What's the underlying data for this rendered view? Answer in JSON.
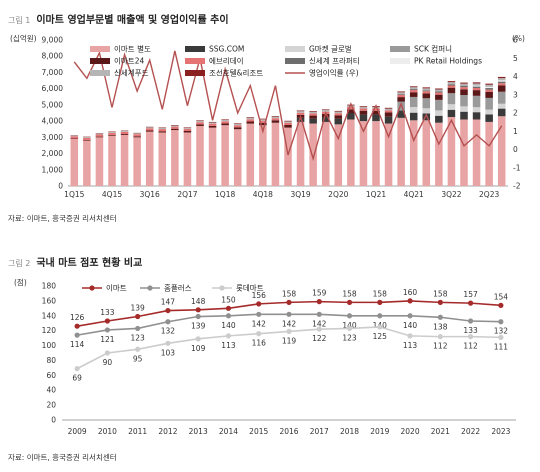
{
  "figures": [
    {
      "num": "그림 1",
      "title": "이마트 영업부문별 매출액 및 영업이익률 추이"
    },
    {
      "num": "그림 2",
      "title": "국내 마트 점포 현황 비교"
    }
  ],
  "sources": [
    "자료: 이마트, 흥국증권 리서치센터",
    "자료: 이마트, 흥국증권 리서치센터"
  ],
  "chart_data": [
    {
      "type": "bar",
      "stacked": true,
      "left_unit": "(십억원)",
      "right_unit": "(%)",
      "ylim": [
        0,
        9000
      ],
      "y_ticks": [
        0,
        1000,
        2000,
        3000,
        4000,
        5000,
        6000,
        7000,
        8000,
        9000
      ],
      "y2lim": [
        -2,
        6
      ],
      "y2_ticks": [
        -2,
        -1,
        0,
        1,
        2,
        3,
        4,
        5,
        6
      ],
      "x_tick_labels": [
        "1Q15",
        "4Q15",
        "3Q16",
        "2Q17",
        "1Q18",
        "4Q18",
        "3Q19",
        "2Q20",
        "1Q21",
        "4Q21",
        "3Q22",
        "2Q23"
      ],
      "categories": [
        "1Q15",
        "2Q15",
        "3Q15",
        "4Q15",
        "1Q16",
        "2Q16",
        "3Q16",
        "4Q16",
        "1Q17",
        "2Q17",
        "3Q17",
        "4Q17",
        "1Q18",
        "2Q18",
        "3Q18",
        "4Q18",
        "1Q19",
        "2Q19",
        "3Q19",
        "4Q19",
        "1Q20",
        "2Q20",
        "3Q20",
        "4Q20",
        "1Q21",
        "2Q21",
        "3Q21",
        "4Q21",
        "1Q22",
        "2Q22",
        "3Q22",
        "4Q22",
        "1Q23",
        "2Q23",
        "3Q23"
      ],
      "series": [
        {
          "name": "이마트 별도",
          "color": "#e8a4a4",
          "values": [
            2900,
            2800,
            3000,
            3100,
            3150,
            3000,
            3350,
            3300,
            3450,
            3300,
            3700,
            3600,
            3750,
            3500,
            3850,
            3750,
            3900,
            3600,
            3950,
            3850,
            3950,
            3800,
            4100,
            4000,
            4000,
            3850,
            4200,
            4050,
            4050,
            3900,
            4250,
            4100,
            4100,
            3950,
            4300
          ]
        },
        {
          "name": "SSG.COM",
          "color": "#3a3a3a",
          "values": [
            0,
            0,
            0,
            0,
            0,
            0,
            0,
            0,
            0,
            0,
            0,
            0,
            0,
            0,
            0,
            0,
            0,
            0,
            250,
            300,
            300,
            350,
            400,
            400,
            400,
            420,
            450,
            470,
            420,
            430,
            450,
            480,
            450,
            460,
            470
          ]
        },
        {
          "name": "G마켓 글로벌",
          "color": "#d4d4d4",
          "values": [
            0,
            0,
            0,
            0,
            0,
            0,
            0,
            0,
            0,
            0,
            0,
            0,
            0,
            0,
            0,
            0,
            0,
            0,
            0,
            0,
            0,
            0,
            0,
            0,
            0,
            0,
            0,
            350,
            320,
            330,
            340,
            330,
            310,
            300,
            300
          ]
        },
        {
          "name": "SCK 컴퍼니",
          "color": "#9a9a9a",
          "values": [
            0,
            0,
            0,
            0,
            0,
            0,
            0,
            0,
            0,
            0,
            0,
            0,
            0,
            0,
            0,
            0,
            0,
            0,
            0,
            0,
            0,
            0,
            0,
            0,
            0,
            0,
            550,
            620,
            620,
            650,
            680,
            700,
            700,
            720,
            740
          ]
        },
        {
          "name": "이마트24",
          "color": "#5a1818",
          "values": [
            30,
            40,
            45,
            50,
            55,
            60,
            70,
            75,
            80,
            90,
            100,
            105,
            110,
            120,
            130,
            140,
            150,
            160,
            180,
            190,
            200,
            210,
            230,
            240,
            240,
            260,
            280,
            290,
            300,
            320,
            340,
            350,
            350,
            380,
            390
          ]
        },
        {
          "name": "에브리데이",
          "color": "#e57373",
          "values": [
            130,
            130,
            130,
            135,
            130,
            130,
            135,
            135,
            130,
            130,
            135,
            135,
            130,
            130,
            135,
            135,
            130,
            130,
            135,
            135,
            130,
            130,
            135,
            135,
            130,
            130,
            130,
            135,
            130,
            130,
            135,
            135,
            130,
            130,
            135
          ]
        },
        {
          "name": "신세계 프라퍼티",
          "color": "#6e6e6e",
          "values": [
            0,
            0,
            0,
            0,
            0,
            0,
            0,
            0,
            0,
            0,
            0,
            0,
            0,
            0,
            0,
            0,
            0,
            0,
            0,
            0,
            0,
            0,
            0,
            0,
            0,
            0,
            50,
            60,
            60,
            70,
            80,
            90,
            90,
            100,
            100
          ]
        },
        {
          "name": "PK Retail Holdings",
          "color": "#ededed",
          "values": [
            0,
            0,
            0,
            0,
            0,
            0,
            0,
            0,
            0,
            0,
            0,
            0,
            0,
            0,
            0,
            0,
            0,
            0,
            0,
            0,
            0,
            0,
            0,
            0,
            0,
            0,
            0,
            0,
            0,
            0,
            0,
            0,
            60,
            70,
            80
          ]
        },
        {
          "name": "신세계푸드",
          "color": "#b5b5b5",
          "values": [
            50,
            50,
            55,
            55,
            60,
            60,
            65,
            65,
            70,
            70,
            75,
            75,
            80,
            80,
            85,
            85,
            90,
            90,
            95,
            95,
            100,
            100,
            105,
            105,
            110,
            110,
            115,
            115,
            120,
            120,
            125,
            125,
            130,
            130,
            135
          ]
        },
        {
          "name": "조선호텔&리조트",
          "color": "#8b2020",
          "values": [
            20,
            20,
            25,
            25,
            25,
            25,
            30,
            30,
            30,
            30,
            35,
            35,
            35,
            35,
            40,
            40,
            40,
            40,
            45,
            45,
            40,
            40,
            45,
            45,
            50,
            50,
            55,
            55,
            60,
            60,
            65,
            65,
            70,
            70,
            75
          ]
        }
      ],
      "line_series": {
        "name": "영업이익률 (우)",
        "color": "#b55050",
        "axis": "right",
        "values": [
          4.8,
          3.9,
          5.3,
          2.3,
          5.2,
          3.2,
          4.9,
          2.2,
          5.4,
          2.4,
          5.0,
          1.6,
          4.4,
          2.0,
          3.5,
          1.0,
          3.5,
          -0.3,
          1.8,
          -0.5,
          2.0,
          0.6,
          2.5,
          1.0,
          2.4,
          0.7,
          2.5,
          0.5,
          1.9,
          0.3,
          1.6,
          0.2,
          0.8,
          0.2,
          1.3
        ]
      }
    },
    {
      "type": "line",
      "y_unit": "(점)",
      "ylim": [
        0,
        180
      ],
      "y_ticks": [
        0,
        20,
        40,
        60,
        80,
        100,
        120,
        140,
        160,
        180
      ],
      "x": [
        "2009",
        "2010",
        "2011",
        "2012",
        "2013",
        "2014",
        "2015",
        "2016",
        "2017",
        "2018",
        "2019",
        "2020",
        "2021",
        "2022",
        "2023"
      ],
      "series": [
        {
          "name": "이마트",
          "color": "#a52a2a",
          "values": [
            126,
            133,
            139,
            147,
            148,
            150,
            156,
            158,
            159,
            158,
            158,
            160,
            158,
            157,
            154
          ]
        },
        {
          "name": "홈플러스",
          "color": "#909090",
          "values": [
            114,
            121,
            123,
            132,
            139,
            140,
            142,
            142,
            142,
            140,
            140,
            140,
            138,
            133,
            132
          ]
        },
        {
          "name": "롯데마트",
          "color": "#cccccc",
          "values": [
            69,
            90,
            95,
            103,
            109,
            113,
            116,
            119,
            122,
            123,
            125,
            113,
            112,
            112,
            111
          ]
        }
      ]
    }
  ]
}
